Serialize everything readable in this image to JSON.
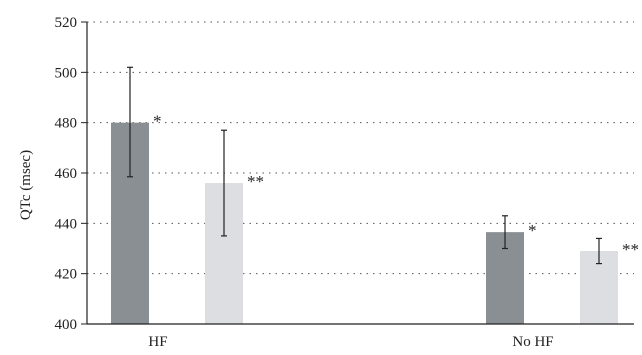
{
  "chart_data": {
    "type": "bar",
    "categories": [
      "HF",
      "No HF"
    ],
    "ylabel": "QTc (msec)",
    "ylim": [
      400,
      520
    ],
    "yticks": [
      400,
      420,
      440,
      460,
      480,
      500,
      520
    ],
    "grid": "horizontal-dotted",
    "series": [
      {
        "color": "#8a8f93",
        "values": [
          480,
          436.5
        ],
        "error": [
          [
            458.5,
            502
          ],
          [
            430,
            443
          ]
        ],
        "annotations": [
          "*",
          "*"
        ]
      },
      {
        "color": "#dddee2",
        "values": [
          456,
          429
        ],
        "error": [
          [
            435,
            477
          ],
          [
            424,
            434
          ]
        ],
        "annotations": [
          "**",
          "**"
        ]
      }
    ]
  }
}
